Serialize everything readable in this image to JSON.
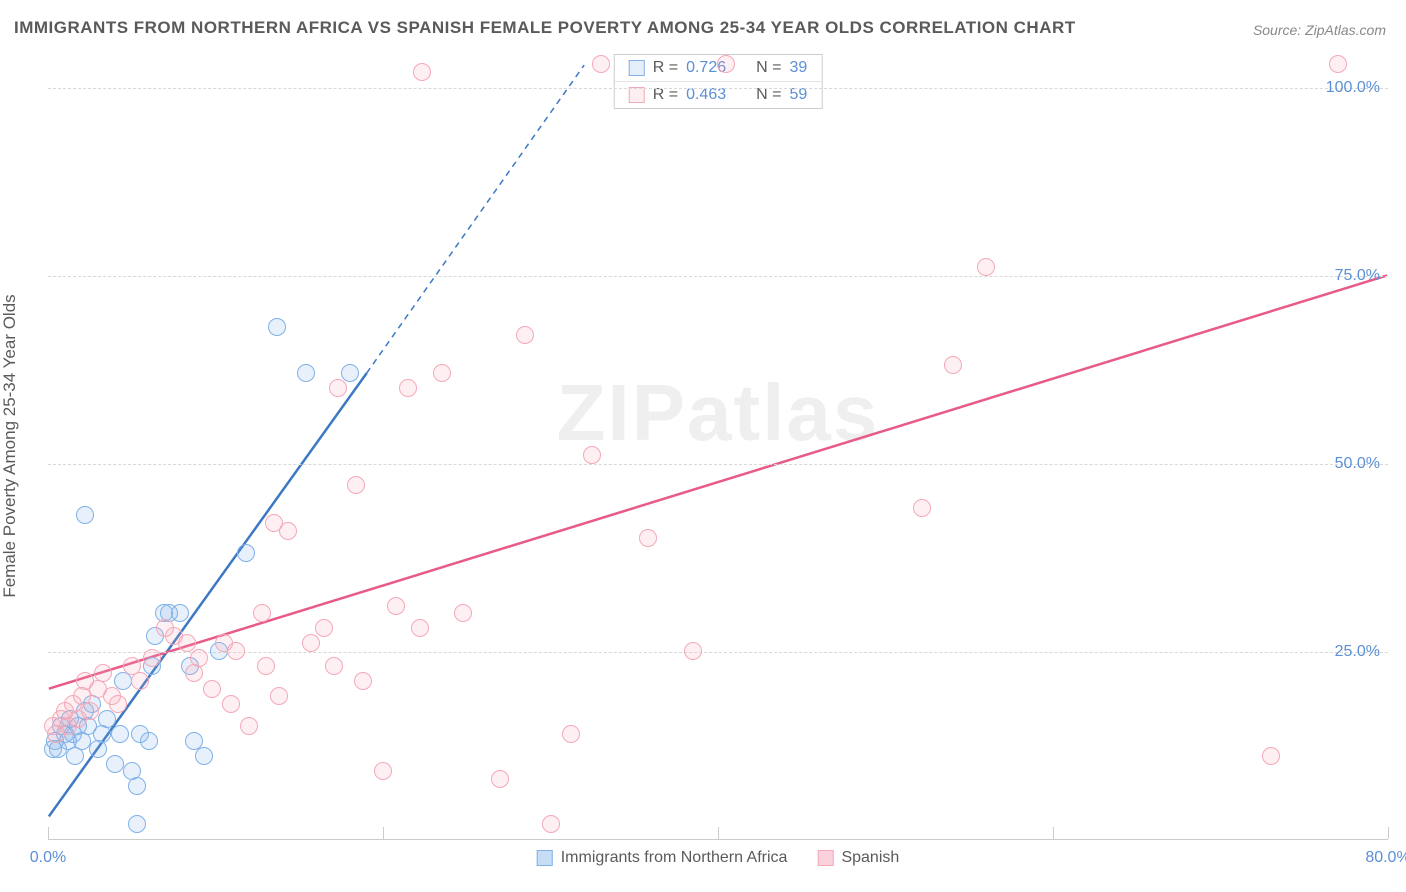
{
  "title": "IMMIGRANTS FROM NORTHERN AFRICA VS SPANISH FEMALE POVERTY AMONG 25-34 YEAR OLDS CORRELATION CHART",
  "source": "Source: ZipAtlas.com",
  "ylabel": "Female Poverty Among 25-34 Year Olds",
  "watermark": "ZIPatlas",
  "chart": {
    "type": "scatter",
    "background_color": "#ffffff",
    "grid_color": "#d8d8d8",
    "text_color": "#5a5a5a",
    "value_color": "#5b8fd6",
    "marker_radius": 9,
    "marker_stroke_width": 1.5,
    "marker_fill_opacity": 0.18,
    "xlim": [
      0,
      80
    ],
    "ylim": [
      0,
      105
    ],
    "xticks": [
      0,
      20,
      40,
      60,
      80
    ],
    "xtick_labels": [
      "0.0%",
      "",
      "",
      "",
      "80.0%"
    ],
    "yticks": [
      25,
      50,
      75,
      100
    ],
    "ytick_labels": [
      "25.0%",
      "50.0%",
      "75.0%",
      "100.0%"
    ],
    "series": [
      {
        "name": "Immigrants from Northern Africa",
        "color": "#7fb1e8",
        "stroke": "#3c78c3",
        "r": 0.726,
        "n": 39,
        "trend": {
          "x1": 0,
          "y1": 3,
          "x2": 19,
          "y2": 62,
          "dash_x2": 32,
          "dash_y2": 103,
          "width": 2.5
        },
        "points": [
          [
            0.3,
            12
          ],
          [
            0.4,
            13
          ],
          [
            0.6,
            12
          ],
          [
            0.8,
            15
          ],
          [
            1.0,
            14
          ],
          [
            1.2,
            13
          ],
          [
            1.3,
            16
          ],
          [
            1.5,
            14
          ],
          [
            1.6,
            11
          ],
          [
            1.8,
            15
          ],
          [
            2.0,
            13
          ],
          [
            2.2,
            17
          ],
          [
            2.4,
            15
          ],
          [
            2.6,
            18
          ],
          [
            2.2,
            43
          ],
          [
            3.0,
            12
          ],
          [
            3.2,
            14
          ],
          [
            3.5,
            16
          ],
          [
            4.0,
            10
          ],
          [
            4.3,
            14
          ],
          [
            4.5,
            21
          ],
          [
            5.0,
            9
          ],
          [
            5.3,
            7
          ],
          [
            5.5,
            14
          ],
          [
            6.0,
            13
          ],
          [
            6.2,
            23
          ],
          [
            6.4,
            27
          ],
          [
            6.9,
            30
          ],
          [
            7.2,
            30
          ],
          [
            7.9,
            30
          ],
          [
            8.5,
            23
          ],
          [
            8.7,
            13
          ],
          [
            9.3,
            11
          ],
          [
            10.2,
            25
          ],
          [
            11.8,
            38
          ],
          [
            13.7,
            68
          ],
          [
            15.4,
            62
          ],
          [
            18.0,
            62
          ],
          [
            5.3,
            2
          ]
        ]
      },
      {
        "name": "Spanish",
        "color": "#f5a8b8",
        "stroke": "#e75b86",
        "r": 0.463,
        "n": 59,
        "trend": {
          "x1": 0,
          "y1": 20,
          "x2": 80,
          "y2": 75,
          "width": 2.5
        },
        "points": [
          [
            0.3,
            15
          ],
          [
            0.5,
            14
          ],
          [
            0.8,
            16
          ],
          [
            1.0,
            17
          ],
          [
            1.2,
            15
          ],
          [
            1.5,
            18
          ],
          [
            1.8,
            16
          ],
          [
            2.0,
            19
          ],
          [
            2.2,
            21
          ],
          [
            2.5,
            17
          ],
          [
            3.0,
            20
          ],
          [
            3.3,
            22
          ],
          [
            3.8,
            19
          ],
          [
            4.2,
            18
          ],
          [
            5.0,
            23
          ],
          [
            5.5,
            21
          ],
          [
            6.2,
            24
          ],
          [
            7.0,
            28
          ],
          [
            7.5,
            27
          ],
          [
            8.3,
            26
          ],
          [
            9.0,
            24
          ],
          [
            9.8,
            20
          ],
          [
            10.5,
            26
          ],
          [
            11.2,
            25
          ],
          [
            12.0,
            15
          ],
          [
            12.8,
            30
          ],
          [
            13.5,
            42
          ],
          [
            14.3,
            41
          ],
          [
            15.7,
            26
          ],
          [
            16.5,
            28
          ],
          [
            17.3,
            60
          ],
          [
            18.4,
            47
          ],
          [
            18.8,
            21
          ],
          [
            20.0,
            9
          ],
          [
            20.8,
            31
          ],
          [
            21.5,
            60
          ],
          [
            22.2,
            28
          ],
          [
            23.5,
            62
          ],
          [
            24.8,
            30
          ],
          [
            27.0,
            8
          ],
          [
            28.5,
            67
          ],
          [
            30.0,
            2
          ],
          [
            31.2,
            14
          ],
          [
            32.5,
            51
          ],
          [
            33.0,
            103
          ],
          [
            35.8,
            40
          ],
          [
            38.5,
            25
          ],
          [
            40.5,
            103
          ],
          [
            52.2,
            44
          ],
          [
            54.0,
            63
          ],
          [
            56.0,
            76
          ],
          [
            73.0,
            11
          ],
          [
            77.0,
            103
          ],
          [
            22.3,
            102
          ],
          [
            8.7,
            22
          ],
          [
            10.9,
            18
          ],
          [
            13.0,
            23
          ],
          [
            17.1,
            23
          ],
          [
            13.8,
            19
          ]
        ]
      }
    ]
  },
  "bottom_legend": [
    {
      "label": "Immigrants from Northern Africa",
      "fill": "#c7ddf5",
      "stroke": "#7fb1e8"
    },
    {
      "label": "Spanish",
      "fill": "#fbd2db",
      "stroke": "#f5a8b8"
    }
  ],
  "legend_box": {
    "r_label": "R =",
    "n_label": "N ="
  }
}
